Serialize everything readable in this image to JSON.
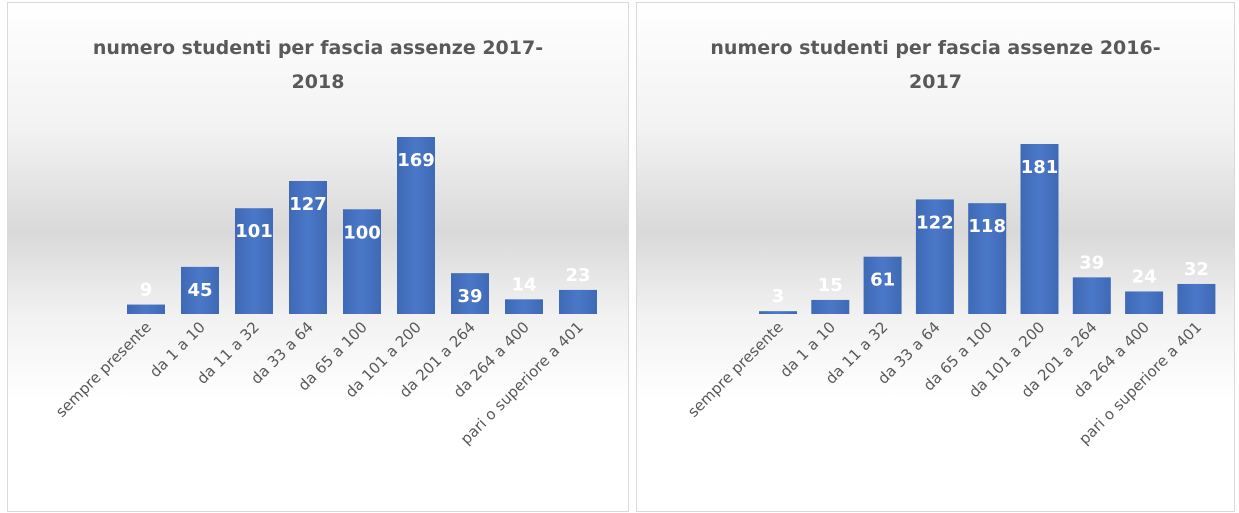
{
  "chart_data": [
    {
      "type": "bar",
      "title": "numero studenti per fascia assenze 2017-2018",
      "categories": [
        "sempre presente",
        "da 1 a 10",
        "da 11 a 32",
        "da 33 a 64",
        "da 65 a 100",
        "da 101 a 200",
        "da 201 a 264",
        "da 264 a 400",
        "pari o superiore a 401"
      ],
      "values": [
        9,
        45,
        101,
        127,
        100,
        169,
        39,
        14,
        23
      ],
      "color": "#4472c4"
    },
    {
      "type": "bar",
      "title": "numero studenti per fascia assenze 2016-2017",
      "categories": [
        "sempre presente",
        "da 1 a 10",
        "da 11 a 32",
        "da 33 a 64",
        "da 65 a 100",
        "da 101 a 200",
        "da 201 a 264",
        "da 264 a 400",
        "pari o superiore a 401"
      ],
      "values": [
        3,
        15,
        61,
        122,
        118,
        181,
        39,
        24,
        32
      ],
      "color": "#4472c4"
    }
  ]
}
